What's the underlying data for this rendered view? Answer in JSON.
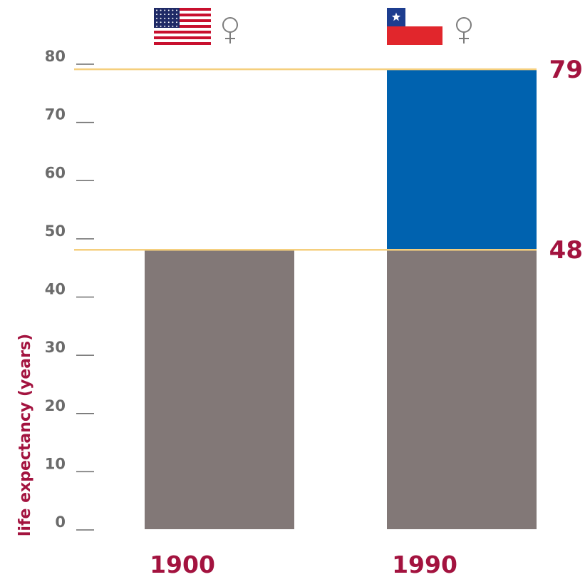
{
  "chart_data": {
    "type": "bar",
    "categories": [
      "1900",
      "1990"
    ],
    "ylabel": "life expectancy (years)",
    "ylim": [
      0,
      80
    ],
    "yticks": [
      0,
      10,
      20,
      30,
      40,
      50,
      60,
      70,
      80
    ],
    "bars": [
      {
        "category": "1900",
        "segments": [
          {
            "value": 48,
            "color": "#827877"
          }
        ]
      },
      {
        "category": "1990",
        "segments": [
          {
            "value": 48,
            "color": "#827877"
          },
          {
            "value": 31,
            "color": "#0062af"
          }
        ]
      }
    ],
    "category_icons": [
      {
        "category": "1900",
        "flag": "usa-flag-icon",
        "symbol": "♀"
      },
      {
        "category": "1990",
        "flag": "chile-flag-icon",
        "symbol": "♀"
      }
    ],
    "reference_lines": [
      {
        "value": 79,
        "label": "79"
      },
      {
        "value": 48,
        "label": "48"
      }
    ],
    "colors": {
      "text_accent": "#a3133f",
      "tick_text": "#6b6b6b",
      "reference_line": "#f5cf7d",
      "base_bar": "#827877",
      "gain_bar": "#0062af"
    }
  }
}
